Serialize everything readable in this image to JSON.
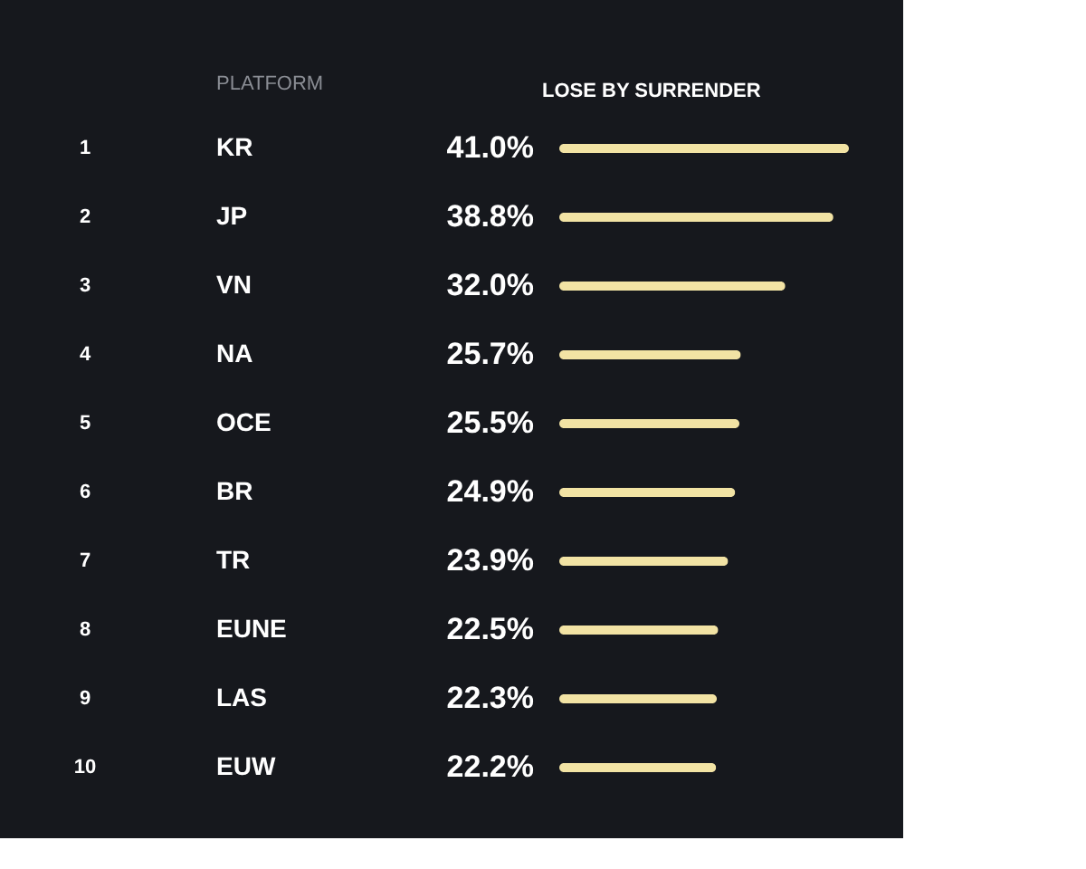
{
  "chart_data": {
    "type": "bar",
    "orientation": "horizontal",
    "ylabel": "PLATFORM",
    "xlabel": "LOSE BY SURRENDER",
    "categories": [
      "KR",
      "JP",
      "VN",
      "NA",
      "OCE",
      "BR",
      "TR",
      "EUNE",
      "LAS",
      "EUW"
    ],
    "values": [
      41.0,
      38.8,
      32.0,
      25.7,
      25.5,
      24.9,
      23.9,
      22.5,
      22.3,
      22.2
    ],
    "value_labels": [
      "41.0%",
      "38.8%",
      "32.0%",
      "25.7%",
      "25.5%",
      "24.9%",
      "23.9%",
      "22.5%",
      "22.3%",
      "22.2%"
    ],
    "annotations": [
      "1",
      "2",
      "3",
      "4",
      "5",
      "6",
      "7",
      "8",
      "9",
      "10"
    ],
    "color": "#f2e3a4",
    "xlim": [
      0,
      41.0
    ],
    "tick_labels": "y"
  }
}
